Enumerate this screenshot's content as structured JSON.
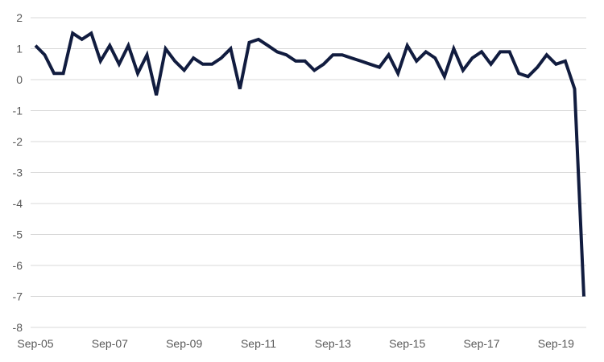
{
  "chart_data": {
    "type": "line",
    "title": "",
    "xlabel": "",
    "ylabel": "",
    "ylim": [
      -8,
      2
    ],
    "yticks": [
      2,
      1,
      0,
      -1,
      -2,
      -3,
      -4,
      -5,
      -6,
      -7,
      -8
    ],
    "xlim": [
      "Sep-05",
      "Dec-19"
    ],
    "x_tick_labels": [
      "Sep-05",
      "Sep-07",
      "Sep-09",
      "Sep-11",
      "Sep-13",
      "Sep-15",
      "Sep-17",
      "Sep-19"
    ],
    "grid": true,
    "legend": "none",
    "series_color": "#111c3f",
    "series": [
      {
        "x": [
          "Sep-05",
          "Dec-05",
          "Mar-06",
          "Jun-06",
          "Sep-06",
          "Dec-06",
          "Mar-07",
          "Jun-07",
          "Sep-07",
          "Dec-07",
          "Mar-08",
          "Jun-08",
          "Sep-08",
          "Dec-08",
          "Mar-09",
          "Jun-09",
          "Sep-09",
          "Dec-09",
          "Mar-10",
          "Jun-10",
          "Sep-10",
          "Dec-10",
          "Mar-11",
          "Jun-11",
          "Sep-11",
          "Dec-11",
          "Mar-12",
          "Jun-12",
          "Sep-12",
          "Dec-12",
          "Mar-13",
          "Jun-13",
          "Sep-13",
          "Dec-13",
          "Mar-14",
          "Jun-14",
          "Sep-14",
          "Dec-14",
          "Mar-15",
          "Jun-15",
          "Sep-15",
          "Dec-15",
          "Mar-16",
          "Jun-16",
          "Sep-16",
          "Dec-16",
          "Mar-17",
          "Jun-17",
          "Sep-17",
          "Dec-17",
          "Mar-18",
          "Jun-18",
          "Sep-18",
          "Dec-18",
          "Mar-19",
          "Jun-19",
          "Sep-19",
          "Dec-19",
          "Mar-20",
          "Jun-20"
        ],
        "values": [
          1.1,
          0.8,
          0.2,
          0.2,
          1.5,
          1.3,
          1.5,
          0.6,
          1.1,
          0.5,
          1.1,
          0.2,
          0.8,
          -0.5,
          1.0,
          0.6,
          0.3,
          0.7,
          0.5,
          0.5,
          0.7,
          1.0,
          -0.3,
          1.2,
          1.3,
          1.1,
          0.9,
          0.8,
          0.6,
          0.6,
          0.3,
          0.5,
          0.8,
          0.8,
          0.7,
          0.6,
          0.5,
          0.4,
          0.8,
          0.2,
          1.1,
          0.6,
          0.9,
          0.7,
          0.1,
          1.0,
          0.3,
          0.7,
          0.9,
          0.5,
          0.9,
          0.9,
          0.2,
          0.1,
          0.4,
          0.8,
          0.5,
          0.6,
          -0.3,
          -7.0
        ]
      }
    ]
  }
}
